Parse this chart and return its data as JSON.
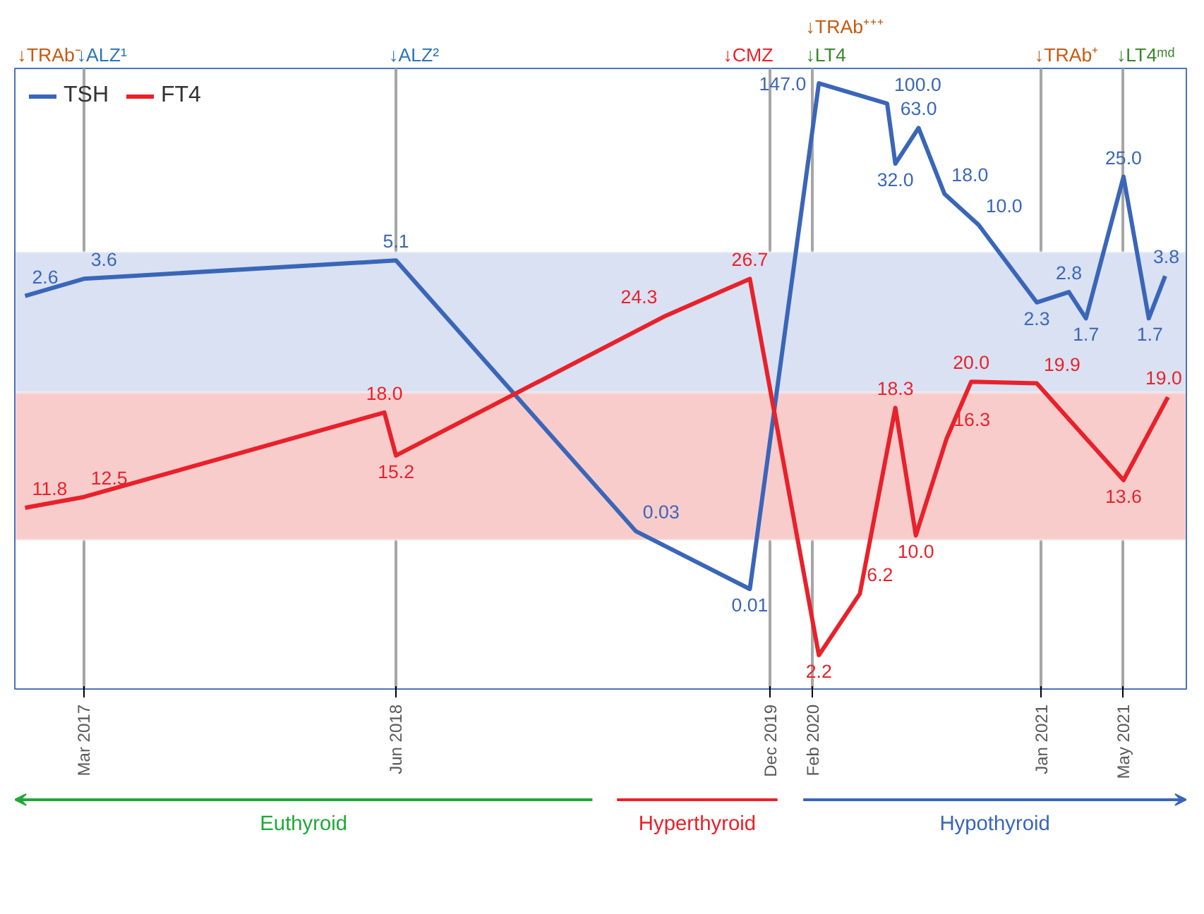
{
  "chart_data": {
    "type": "line",
    "series": [
      {
        "name": "TSH",
        "color": "#3a66b8",
        "x": [
          "2016-12-05",
          "2017-03",
          "2018-06",
          "2019-05-18",
          "2019-11",
          "2020-02-10",
          "2020-05-20",
          "2020-06",
          "2020-07-05",
          "2020-08-12",
          "2020-10",
          "2020-12-25",
          "2021-02-10",
          "2021-03-07",
          "2021-05",
          "2021-06-07",
          "2021-07"
        ],
        "values": [
          2.6,
          3.6,
          5.1,
          0.03,
          0.01,
          147.0,
          100.0,
          32.0,
          63.0,
          18.0,
          10.0,
          2.3,
          2.8,
          1.7,
          25.0,
          1.7,
          3.8
        ],
        "value_labels": [
          "2.6",
          "3.6",
          "5.1",
          "0.03",
          "0.01",
          "147.0",
          "100.0",
          "32.0",
          "63.0",
          "18.0",
          "10.0",
          "2.3",
          "2.8",
          "1.7",
          "25.0",
          "1.7",
          "3.8"
        ]
      },
      {
        "name": "FT4",
        "color": "#e8212a",
        "axis": "y2",
        "x": [
          "2016-12-05",
          "2017-03",
          "2018-05-15",
          "2018-06",
          "2019-07",
          "2019-11",
          "2020-02-10",
          "2020-04-10",
          "2020-06",
          "2020-07",
          "2020-08-15",
          "2020-09-20",
          "2020-12-25",
          "2021-05",
          "2021-07-05"
        ],
        "values": [
          11.8,
          12.5,
          18.0,
          15.2,
          24.3,
          26.7,
          2.2,
          6.2,
          18.3,
          10.0,
          16.3,
          20.0,
          19.9,
          13.6,
          19.0
        ],
        "value_labels": [
          "11.8",
          "12.5",
          "18.0",
          "15.2",
          "24.3",
          "26.7",
          "2.2",
          "6.2",
          "18.3",
          "10.0",
          "16.3",
          "20.0",
          "19.9",
          "13.6",
          "19.0"
        ]
      }
    ],
    "log": "y",
    "ylim": [
      0.0015,
      195
    ],
    "y2lim": [
      0,
      40.4
    ],
    "xlim": [
      "2016-11-20",
      "2021-08-01"
    ],
    "xticks": [
      {
        "value": "2017-03",
        "label": "Mar 2017"
      },
      {
        "value": "2018-06",
        "label": "Jun 2018"
      },
      {
        "value": "2019-12",
        "label": "Dec 2019"
      },
      {
        "value": "2020-02",
        "label": "Feb 2020"
      },
      {
        "value": "2021-01",
        "label": "Jan 2021"
      },
      {
        "value": "2021-05",
        "label": "May 2021"
      }
    ],
    "tick_labels": "x",
    "grid": "x",
    "legend": "top left",
    "line_style": "solid",
    "bands": [
      {
        "axis": "y",
        "from": 0.41,
        "to": 6.0,
        "color": "#d9e1f2"
      },
      {
        "axis": "y2",
        "from": 9.7,
        "to": 19.3,
        "color": "#f9cccc"
      }
    ],
    "annotations": [
      "↓TRAb⁻",
      "↓ALZ¹",
      "↓ALZ²",
      "↓CMZ",
      "↓LT4",
      "↓TRAb⁺⁺⁺",
      "↓TRAb⁺",
      "↓LT4ᵐᵈ",
      "Euthyroid",
      "Hyperthyroid",
      "Hypothyroid"
    ]
  }
}
